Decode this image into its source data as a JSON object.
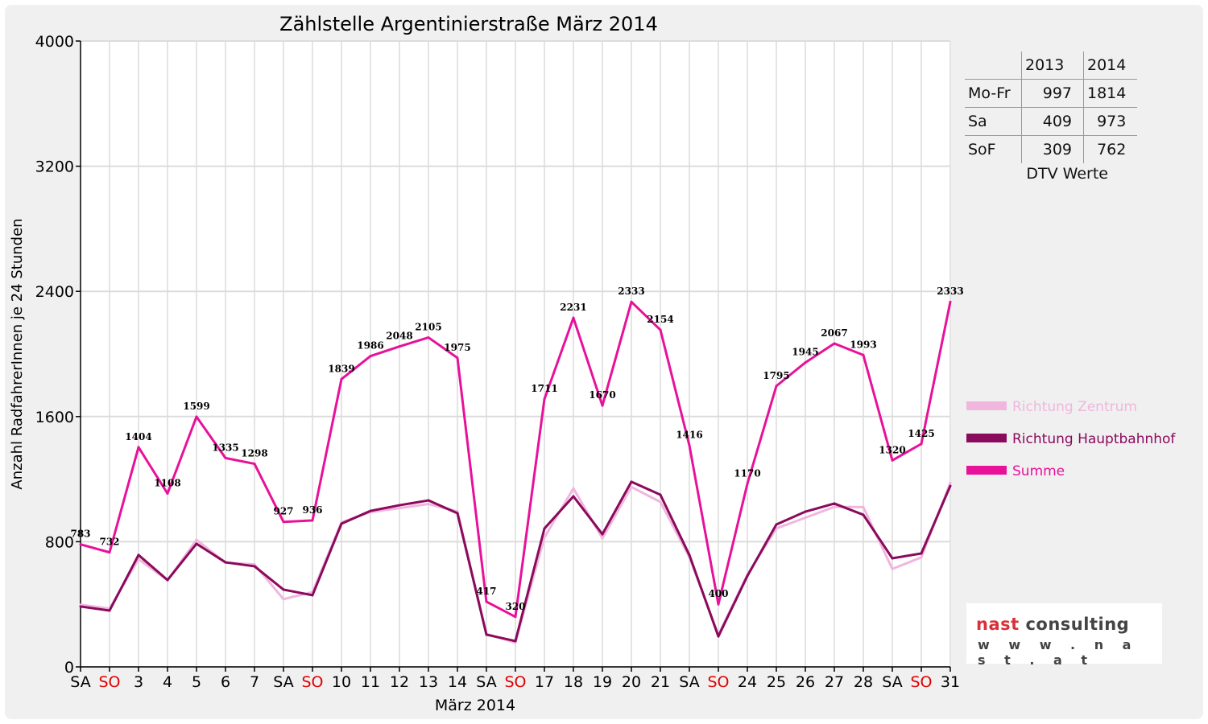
{
  "chart_data": {
    "type": "line",
    "title": "Zählstelle Argentinierstraße März 2014",
    "xlabel": "März 2014",
    "ylabel": "Anzahl RadfahrerInnen je 24 Stunden",
    "ylim": [
      0,
      4000
    ],
    "yticks": [
      "0",
      "800",
      "1600",
      "2400",
      "3200",
      "4000"
    ],
    "categories": [
      "SA",
      "SO",
      "3",
      "4",
      "5",
      "6",
      "7",
      "SA",
      "SO",
      "10",
      "11",
      "12",
      "13",
      "14",
      "SA",
      "SO",
      "17",
      "18",
      "19",
      "20",
      "21",
      "SA",
      "SO",
      "24",
      "25",
      "26",
      "27",
      "28",
      "SA",
      "SO",
      "31"
    ],
    "grid": true,
    "legend_position": "right",
    "series": [
      {
        "name": "Richtung Zentrum",
        "color": "#f0b6de",
        "values": [
          397,
          372,
          689,
          553,
          812,
          667,
          655,
          433,
          478,
          924,
          989,
          1015,
          1041,
          993,
          211,
          155,
          827,
          1141,
          822,
          1150,
          1054,
          701,
          205,
          589,
          885,
          953,
          1023,
          1021,
          626,
          700,
          1176
        ]
      },
      {
        "name": "Richtung Hauptbahnhof",
        "color": "#8a0a5c",
        "values": [
          386,
          360,
          715,
          555,
          787,
          668,
          643,
          494,
          458,
          915,
          997,
          1033,
          1064,
          982,
          206,
          165,
          884,
          1090,
          848,
          1183,
          1100,
          715,
          195,
          581,
          910,
          992,
          1044,
          972,
          694,
          725,
          1157
        ]
      },
      {
        "name": "Summe",
        "color": "#e8119a",
        "values": [
          783,
          732,
          1404,
          1108,
          1599,
          1335,
          1298,
          927,
          936,
          1839,
          1986,
          2048,
          2105,
          1975,
          417,
          320,
          1711,
          2231,
          1670,
          2333,
          2154,
          1416,
          400,
          1170,
          1795,
          1945,
          2067,
          1993,
          1320,
          1425,
          2333
        ]
      }
    ]
  },
  "dtv_table": {
    "headers": [
      "",
      "2013",
      "2014"
    ],
    "rows": [
      {
        "label": "Mo-Fr",
        "v2013": "997",
        "v2014": "1814"
      },
      {
        "label": "Sa",
        "v2013": "409",
        "v2014": "973"
      },
      {
        "label": "SoF",
        "v2013": "309",
        "v2014": "762"
      }
    ],
    "caption": "DTV Werte"
  },
  "logo": {
    "brand_red": "nast",
    "brand_dark": "consulting",
    "url": "w w w . n a s t . a t"
  }
}
